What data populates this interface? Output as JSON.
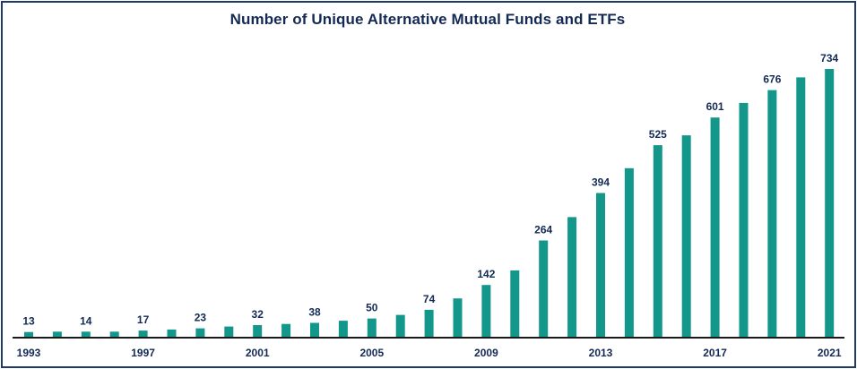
{
  "chart_data": {
    "type": "bar",
    "title": "Number of Unique Alternative Mutual Funds and ETFs",
    "xlabel": "",
    "ylabel": "",
    "ylim": [
      0,
      734
    ],
    "categories": [
      "1993",
      "1994",
      "1995",
      "1996",
      "1997",
      "1998",
      "1999",
      "2000",
      "2001",
      "2002",
      "2003",
      "2004",
      "2005",
      "2006",
      "2007",
      "2008",
      "2009",
      "2010",
      "2011",
      "2012",
      "2013",
      "2014",
      "2015",
      "2016",
      "2017",
      "2018",
      "2019",
      "2020",
      "2021"
    ],
    "values": [
      13,
      14,
      14,
      14,
      17,
      20,
      23,
      28,
      32,
      35,
      38,
      44,
      50,
      60,
      74,
      105,
      142,
      182,
      264,
      328,
      394,
      462,
      525,
      552,
      601,
      641,
      676,
      711,
      734
    ],
    "data_labels": [
      {
        "category": "1993",
        "text": "13"
      },
      {
        "category": "1995",
        "text": "14"
      },
      {
        "category": "1997",
        "text": "17"
      },
      {
        "category": "1999",
        "text": "23"
      },
      {
        "category": "2001",
        "text": "32"
      },
      {
        "category": "2003",
        "text": "38"
      },
      {
        "category": "2005",
        "text": "50"
      },
      {
        "category": "2007",
        "text": "74"
      },
      {
        "category": "2009",
        "text": "142"
      },
      {
        "category": "2011",
        "text": "264"
      },
      {
        "category": "2013",
        "text": "394"
      },
      {
        "category": "2015",
        "text": "525"
      },
      {
        "category": "2017",
        "text": "601"
      },
      {
        "category": "2019",
        "text": "676"
      },
      {
        "category": "2021",
        "text": "734"
      }
    ],
    "tick_labels": [
      "1993",
      "1997",
      "2001",
      "2005",
      "2009",
      "2013",
      "2017",
      "2021"
    ],
    "bar_color": "#12978a",
    "grid": false,
    "legend": "none"
  }
}
